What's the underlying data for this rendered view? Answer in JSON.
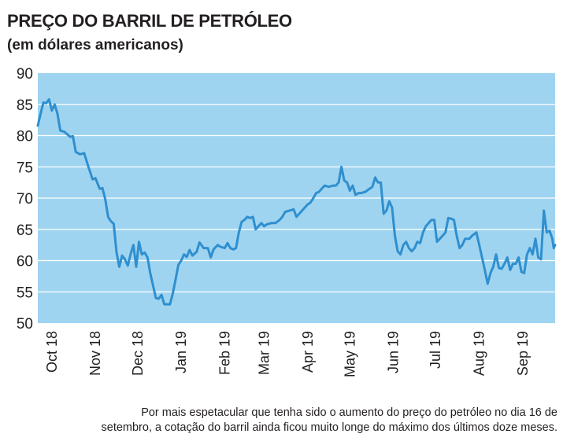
{
  "header": {
    "title": "PREÇO DO BARRIL DE PETRÓLEO",
    "subtitle": "(em dólares americanos)"
  },
  "caption": {
    "line1": "Por mais espetacular que tenha sido o aumento do preço do petróleo no dia 16 de",
    "line2": "setembro, a cotação do barril ainda ficou muito longe do máximo dos últimos doze meses."
  },
  "colors": {
    "plot_background": "#9fd4f0",
    "line": "#2f8fcf",
    "gridline": "#ffffff",
    "text": "#231f20"
  },
  "chart_data": {
    "type": "line",
    "title": "PREÇO DO BARRIL DE PETRÓLEO",
    "subtitle": "(em dólares americanos)",
    "xlabel": "",
    "ylabel": "",
    "ylim": [
      50,
      90
    ],
    "yticks": [
      50,
      55,
      60,
      65,
      70,
      75,
      80,
      85,
      90
    ],
    "grid": "horizontal",
    "xlim": [
      "2018-09-21",
      "2019-09-24"
    ],
    "xtick_labels": [
      {
        "label": "Oct 18",
        "date": "2018-10-01"
      },
      {
        "label": "Nov 18",
        "date": "2018-11-01"
      },
      {
        "label": "Dec 18",
        "date": "2018-12-01"
      },
      {
        "label": "Jan 19",
        "date": "2019-01-01"
      },
      {
        "label": "Feb 19",
        "date": "2019-02-01"
      },
      {
        "label": "Mar 19",
        "date": "2019-03-01"
      },
      {
        "label": "Apr 19",
        "date": "2019-04-01"
      },
      {
        "label": "May 19",
        "date": "2019-05-01"
      },
      {
        "label": "Jun 19",
        "date": "2019-06-01"
      },
      {
        "label": "Jul 19",
        "date": "2019-07-01"
      },
      {
        "label": "Aug 19",
        "date": "2019-08-01"
      },
      {
        "label": "Sep 19",
        "date": "2019-09-01"
      }
    ],
    "series": [
      {
        "color": "#2f8fcf",
        "points": [
          {
            "x": "2018-09-21",
            "y": 81.6
          },
          {
            "x": "2018-09-23",
            "y": 83.5
          },
          {
            "x": "2018-09-25",
            "y": 85.3
          },
          {
            "x": "2018-09-27",
            "y": 85.2
          },
          {
            "x": "2018-09-29",
            "y": 85.8
          },
          {
            "x": "2018-10-01",
            "y": 84.0
          },
          {
            "x": "2018-10-03",
            "y": 85.0
          },
          {
            "x": "2018-10-05",
            "y": 83.5
          },
          {
            "x": "2018-10-07",
            "y": 80.8
          },
          {
            "x": "2018-10-10",
            "y": 80.6
          },
          {
            "x": "2018-10-14",
            "y": 79.8
          },
          {
            "x": "2018-10-16",
            "y": 79.9
          },
          {
            "x": "2018-10-18",
            "y": 77.4
          },
          {
            "x": "2018-10-21",
            "y": 77.0
          },
          {
            "x": "2018-10-24",
            "y": 77.2
          },
          {
            "x": "2018-10-27",
            "y": 75.0
          },
          {
            "x": "2018-10-30",
            "y": 73.0
          },
          {
            "x": "2018-11-01",
            "y": 73.2
          },
          {
            "x": "2018-11-04",
            "y": 71.5
          },
          {
            "x": "2018-11-06",
            "y": 71.6
          },
          {
            "x": "2018-11-08",
            "y": 69.8
          },
          {
            "x": "2018-11-10",
            "y": 67.0
          },
          {
            "x": "2018-11-12",
            "y": 66.3
          },
          {
            "x": "2018-11-14",
            "y": 65.9
          },
          {
            "x": "2018-11-16",
            "y": 61.3
          },
          {
            "x": "2018-11-18",
            "y": 59.0
          },
          {
            "x": "2018-11-20",
            "y": 60.8
          },
          {
            "x": "2018-11-22",
            "y": 60.2
          },
          {
            "x": "2018-11-24",
            "y": 59.2
          },
          {
            "x": "2018-11-26",
            "y": 61.0
          },
          {
            "x": "2018-11-28",
            "y": 62.5
          },
          {
            "x": "2018-11-30",
            "y": 59.0
          },
          {
            "x": "2018-12-02",
            "y": 63.0
          },
          {
            "x": "2018-12-04",
            "y": 61.0
          },
          {
            "x": "2018-12-06",
            "y": 61.3
          },
          {
            "x": "2018-12-08",
            "y": 60.5
          },
          {
            "x": "2018-12-10",
            "y": 58.0
          },
          {
            "x": "2018-12-12",
            "y": 56.0
          },
          {
            "x": "2018-12-14",
            "y": 54.0
          },
          {
            "x": "2018-12-16",
            "y": 53.9
          },
          {
            "x": "2018-12-18",
            "y": 54.5
          },
          {
            "x": "2018-12-20",
            "y": 53.0
          },
          {
            "x": "2018-12-22",
            "y": 53.0
          },
          {
            "x": "2018-12-24",
            "y": 53.0
          },
          {
            "x": "2018-12-26",
            "y": 54.7
          },
          {
            "x": "2018-12-28",
            "y": 57.0
          },
          {
            "x": "2018-12-30",
            "y": 59.3
          },
          {
            "x": "2019-01-01",
            "y": 60.0
          },
          {
            "x": "2019-01-03",
            "y": 61.0
          },
          {
            "x": "2019-01-05",
            "y": 60.6
          },
          {
            "x": "2019-01-07",
            "y": 61.7
          },
          {
            "x": "2019-01-09",
            "y": 60.8
          },
          {
            "x": "2019-01-12",
            "y": 61.4
          },
          {
            "x": "2019-01-14",
            "y": 62.9
          },
          {
            "x": "2019-01-17",
            "y": 62.0
          },
          {
            "x": "2019-01-20",
            "y": 62.0
          },
          {
            "x": "2019-01-22",
            "y": 60.5
          },
          {
            "x": "2019-01-24",
            "y": 61.8
          },
          {
            "x": "2019-01-27",
            "y": 62.5
          },
          {
            "x": "2019-01-29",
            "y": 62.2
          },
          {
            "x": "2019-02-01",
            "y": 62.0
          },
          {
            "x": "2019-02-03",
            "y": 62.8
          },
          {
            "x": "2019-02-05",
            "y": 62.0
          },
          {
            "x": "2019-02-07",
            "y": 61.8
          },
          {
            "x": "2019-02-09",
            "y": 62.0
          },
          {
            "x": "2019-02-11",
            "y": 64.5
          },
          {
            "x": "2019-02-13",
            "y": 66.2
          },
          {
            "x": "2019-02-15",
            "y": 66.5
          },
          {
            "x": "2019-02-17",
            "y": 67.0
          },
          {
            "x": "2019-02-19",
            "y": 66.8
          },
          {
            "x": "2019-02-21",
            "y": 67.0
          },
          {
            "x": "2019-02-23",
            "y": 65.0
          },
          {
            "x": "2019-02-25",
            "y": 65.5
          },
          {
            "x": "2019-02-27",
            "y": 66.0
          },
          {
            "x": "2019-03-01",
            "y": 65.5
          },
          {
            "x": "2019-03-03",
            "y": 65.8
          },
          {
            "x": "2019-03-06",
            "y": 66.0
          },
          {
            "x": "2019-03-09",
            "y": 66.0
          },
          {
            "x": "2019-03-12",
            "y": 66.5
          },
          {
            "x": "2019-03-14",
            "y": 67.0
          },
          {
            "x": "2019-03-16",
            "y": 67.8
          },
          {
            "x": "2019-03-19",
            "y": 68.0
          },
          {
            "x": "2019-03-22",
            "y": 68.2
          },
          {
            "x": "2019-03-24",
            "y": 67.0
          },
          {
            "x": "2019-03-26",
            "y": 67.5
          },
          {
            "x": "2019-03-28",
            "y": 68.0
          },
          {
            "x": "2019-03-30",
            "y": 68.5
          },
          {
            "x": "2019-04-01",
            "y": 69.0
          },
          {
            "x": "2019-04-03",
            "y": 69.3
          },
          {
            "x": "2019-04-05",
            "y": 70.0
          },
          {
            "x": "2019-04-07",
            "y": 70.8
          },
          {
            "x": "2019-04-09",
            "y": 71.0
          },
          {
            "x": "2019-04-11",
            "y": 71.5
          },
          {
            "x": "2019-04-13",
            "y": 72.0
          },
          {
            "x": "2019-04-16",
            "y": 71.8
          },
          {
            "x": "2019-04-19",
            "y": 72.0
          },
          {
            "x": "2019-04-21",
            "y": 72.0
          },
          {
            "x": "2019-04-23",
            "y": 72.5
          },
          {
            "x": "2019-04-25",
            "y": 75.0
          },
          {
            "x": "2019-04-27",
            "y": 72.8
          },
          {
            "x": "2019-04-29",
            "y": 72.5
          },
          {
            "x": "2019-05-01",
            "y": 71.2
          },
          {
            "x": "2019-05-03",
            "y": 72.0
          },
          {
            "x": "2019-05-05",
            "y": 70.5
          },
          {
            "x": "2019-05-07",
            "y": 70.8
          },
          {
            "x": "2019-05-09",
            "y": 70.8
          },
          {
            "x": "2019-05-12",
            "y": 71.0
          },
          {
            "x": "2019-05-15",
            "y": 71.5
          },
          {
            "x": "2019-05-17",
            "y": 71.8
          },
          {
            "x": "2019-05-19",
            "y": 73.3
          },
          {
            "x": "2019-05-21",
            "y": 72.5
          },
          {
            "x": "2019-05-23",
            "y": 72.5
          },
          {
            "x": "2019-05-25",
            "y": 67.5
          },
          {
            "x": "2019-05-27",
            "y": 68.0
          },
          {
            "x": "2019-05-29",
            "y": 69.5
          },
          {
            "x": "2019-05-31",
            "y": 68.5
          },
          {
            "x": "2019-06-02",
            "y": 64.0
          },
          {
            "x": "2019-06-04",
            "y": 61.5
          },
          {
            "x": "2019-06-06",
            "y": 61.0
          },
          {
            "x": "2019-06-08",
            "y": 62.5
          },
          {
            "x": "2019-06-10",
            "y": 63.0
          },
          {
            "x": "2019-06-12",
            "y": 62.0
          },
          {
            "x": "2019-06-14",
            "y": 61.5
          },
          {
            "x": "2019-06-16",
            "y": 62.0
          },
          {
            "x": "2019-06-18",
            "y": 63.0
          },
          {
            "x": "2019-06-20",
            "y": 62.8
          },
          {
            "x": "2019-06-22",
            "y": 64.5
          },
          {
            "x": "2019-06-24",
            "y": 65.5
          },
          {
            "x": "2019-06-26",
            "y": 66.0
          },
          {
            "x": "2019-06-28",
            "y": 66.5
          },
          {
            "x": "2019-06-30",
            "y": 66.5
          },
          {
            "x": "2019-07-02",
            "y": 63.0
          },
          {
            "x": "2019-07-04",
            "y": 63.5
          },
          {
            "x": "2019-07-06",
            "y": 64.0
          },
          {
            "x": "2019-07-08",
            "y": 64.5
          },
          {
            "x": "2019-07-10",
            "y": 66.8
          },
          {
            "x": "2019-07-12",
            "y": 66.7
          },
          {
            "x": "2019-07-14",
            "y": 66.5
          },
          {
            "x": "2019-07-16",
            "y": 64.0
          },
          {
            "x": "2019-07-18",
            "y": 62.0
          },
          {
            "x": "2019-07-20",
            "y": 62.5
          },
          {
            "x": "2019-07-22",
            "y": 63.5
          },
          {
            "x": "2019-07-25",
            "y": 63.5
          },
          {
            "x": "2019-07-27",
            "y": 64.0
          },
          {
            "x": "2019-07-30",
            "y": 64.5
          },
          {
            "x": "2019-08-01",
            "y": 62.5
          },
          {
            "x": "2019-08-03",
            "y": 60.5
          },
          {
            "x": "2019-08-05",
            "y": 58.5
          },
          {
            "x": "2019-08-07",
            "y": 56.3
          },
          {
            "x": "2019-08-09",
            "y": 58.0
          },
          {
            "x": "2019-08-11",
            "y": 59.0
          },
          {
            "x": "2019-08-13",
            "y": 61.0
          },
          {
            "x": "2019-08-15",
            "y": 58.8
          },
          {
            "x": "2019-08-17",
            "y": 58.7
          },
          {
            "x": "2019-08-19",
            "y": 59.5
          },
          {
            "x": "2019-08-21",
            "y": 60.5
          },
          {
            "x": "2019-08-23",
            "y": 58.5
          },
          {
            "x": "2019-08-25",
            "y": 59.5
          },
          {
            "x": "2019-08-27",
            "y": 59.5
          },
          {
            "x": "2019-08-29",
            "y": 60.5
          },
          {
            "x": "2019-08-31",
            "y": 58.2
          },
          {
            "x": "2019-09-02",
            "y": 58.0
          },
          {
            "x": "2019-09-04",
            "y": 61.0
          },
          {
            "x": "2019-09-06",
            "y": 62.0
          },
          {
            "x": "2019-09-08",
            "y": 61.0
          },
          {
            "x": "2019-09-10",
            "y": 63.5
          },
          {
            "x": "2019-09-12",
            "y": 60.5
          },
          {
            "x": "2019-09-14",
            "y": 60.2
          },
          {
            "x": "2019-09-16",
            "y": 68.0
          },
          {
            "x": "2019-09-18",
            "y": 64.5
          },
          {
            "x": "2019-09-20",
            "y": 64.8
          },
          {
            "x": "2019-09-22",
            "y": 63.5
          },
          {
            "x": "2019-09-23",
            "y": 62.0
          },
          {
            "x": "2019-09-24",
            "y": 62.5
          }
        ]
      }
    ]
  }
}
